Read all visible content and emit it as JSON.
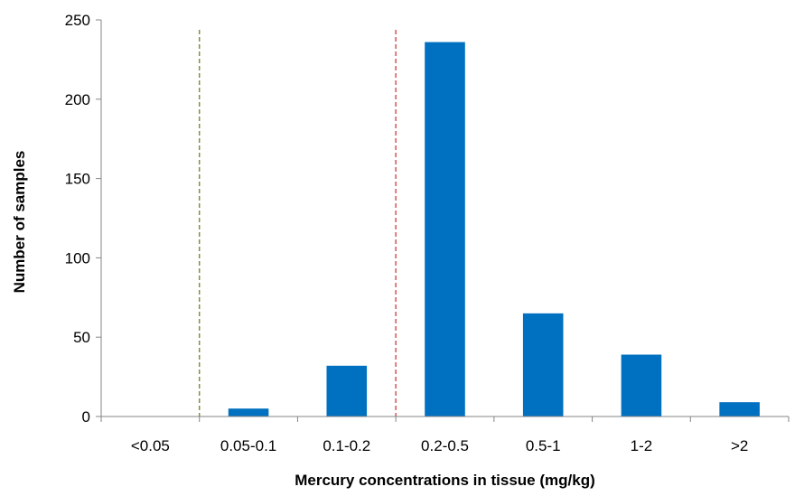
{
  "chart_data": {
    "type": "bar",
    "title": "",
    "xlabel": "Mercury concentrations in tissue (mg/kg)",
    "ylabel": "Number of samples",
    "categories": [
      "<0.05",
      "0.05-0.1",
      "0.1-0.2",
      "0.2-0.5",
      "0.5-1",
      "1-2",
      ">2"
    ],
    "values": [
      0,
      5,
      32,
      236,
      65,
      39,
      9
    ],
    "ylim": [
      0,
      250
    ],
    "yticks": [
      0,
      50,
      100,
      150,
      200,
      250
    ],
    "grid": false,
    "bar_color": "#0070C0",
    "reference_lines": [
      {
        "between_categories": [
          "<0.05",
          "0.05-0.1"
        ],
        "style": "dashed",
        "color": "#7F8F3F"
      },
      {
        "between_categories": [
          "0.1-0.2",
          "0.2-0.5"
        ],
        "style": "dashed",
        "color": "#D9534F"
      }
    ]
  }
}
